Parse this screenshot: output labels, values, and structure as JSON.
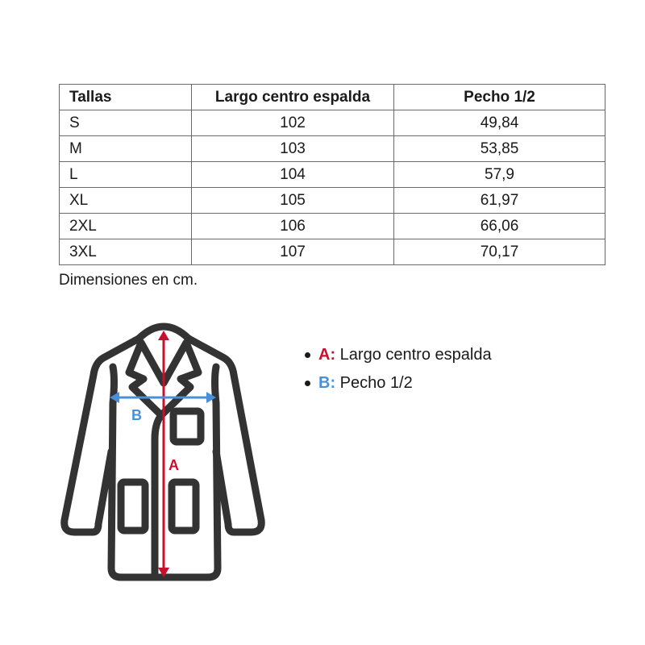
{
  "table": {
    "headers": [
      "Tallas",
      "Largo centro espalda",
      "Pecho 1/2"
    ],
    "rows": [
      [
        "S",
        "102",
        "49,84"
      ],
      [
        "M",
        "103",
        "53,85"
      ],
      [
        "L",
        "104",
        "57,9"
      ],
      [
        "XL",
        "105",
        "61,97"
      ],
      [
        "2XL",
        "106",
        "66,06"
      ],
      [
        "3XL",
        "107",
        "70,17"
      ]
    ]
  },
  "note": "Dimensiones en cm.",
  "diagram": {
    "label_a": "A",
    "label_b": "B",
    "colors": {
      "a": "#c8102e",
      "b": "#4a90d9",
      "outline": "#333333"
    }
  },
  "legend": [
    {
      "key": "A:",
      "text": "Largo centro espalda"
    },
    {
      "key": "B:",
      "text": "Pecho 1/2"
    }
  ]
}
